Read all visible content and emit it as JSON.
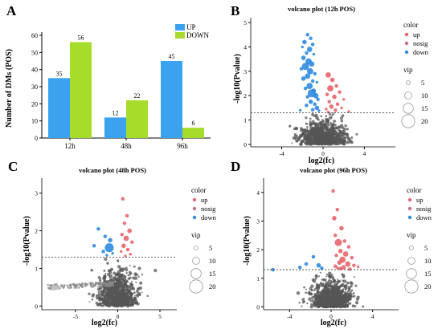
{
  "chart_data": [
    {
      "panel_label": "A",
      "type": "bar",
      "ylabel": "Number of DMs (POS)",
      "categories": [
        "12h",
        "48h",
        "96h"
      ],
      "series": [
        {
          "name": "UP",
          "values": [
            35,
            12,
            45
          ],
          "color": "#3ba2ef"
        },
        {
          "name": "DOWN",
          "values": [
            56,
            22,
            6
          ],
          "color": "#a6dc2a"
        }
      ],
      "ylim": [
        0,
        60
      ],
      "yticks": [
        0,
        10,
        20,
        30,
        40,
        50,
        60
      ],
      "legend_position": "top-right"
    },
    {
      "panel_label": "B",
      "type": "scatter",
      "title": "volcano plot (12h POS)",
      "xlabel": "log2(fc)",
      "ylabel": "-log10(Pvalue)",
      "xlim": [
        -7,
        7
      ],
      "ylim": [
        -0.1,
        5.2
      ],
      "xticks": [
        -4,
        0,
        4
      ],
      "yticks": [
        0,
        1,
        2,
        3,
        4,
        5
      ],
      "threshold_y": 1.3,
      "grid": false,
      "legend_position": "right",
      "color_legend_title": "color",
      "color_legend": [
        "up",
        "nosig",
        "down"
      ],
      "size_legend_title": "vip",
      "size_legend": [
        "5",
        "10",
        "15",
        "20"
      ],
      "points": [
        {
          "g": "down",
          "x": -1.5,
          "y": 4.5,
          "s": 3
        },
        {
          "g": "down",
          "x": -1.2,
          "y": 4.35,
          "s": 3
        },
        {
          "g": "down",
          "x": -1.8,
          "y": 4.2,
          "s": 4
        },
        {
          "g": "down",
          "x": -1.0,
          "y": 4.1,
          "s": 3
        },
        {
          "g": "down",
          "x": -2.0,
          "y": 4.0,
          "s": 2
        },
        {
          "g": "down",
          "x": -1.3,
          "y": 3.9,
          "s": 5
        },
        {
          "g": "down",
          "x": -1.6,
          "y": 3.75,
          "s": 3
        },
        {
          "g": "down",
          "x": -0.9,
          "y": 3.7,
          "s": 2
        },
        {
          "g": "down",
          "x": -1.9,
          "y": 3.55,
          "s": 4
        },
        {
          "g": "down",
          "x": -1.4,
          "y": 3.4,
          "s": 6
        },
        {
          "g": "down",
          "x": -1.1,
          "y": 3.3,
          "s": 5
        },
        {
          "g": "down",
          "x": -1.7,
          "y": 3.2,
          "s": 7
        },
        {
          "g": "down",
          "x": -2.1,
          "y": 3.1,
          "s": 3
        },
        {
          "g": "down",
          "x": -1.25,
          "y": 3.0,
          "s": 6
        },
        {
          "g": "down",
          "x": -0.8,
          "y": 2.9,
          "s": 3
        },
        {
          "g": "down",
          "x": -1.5,
          "y": 2.8,
          "s": 5
        },
        {
          "g": "down",
          "x": -1.9,
          "y": 2.7,
          "s": 4
        },
        {
          "g": "down",
          "x": -1.0,
          "y": 2.6,
          "s": 3
        },
        {
          "g": "down",
          "x": -0.6,
          "y": 2.55,
          "s": 2
        },
        {
          "g": "down",
          "x": -1.3,
          "y": 2.4,
          "s": 6
        },
        {
          "g": "down",
          "x": -1.7,
          "y": 2.3,
          "s": 3
        },
        {
          "g": "down",
          "x": -0.9,
          "y": 2.2,
          "s": 4
        },
        {
          "g": "down",
          "x": -1.1,
          "y": 2.1,
          "s": 8
        },
        {
          "g": "down",
          "x": -0.7,
          "y": 2.0,
          "s": 5
        },
        {
          "g": "down",
          "x": -1.5,
          "y": 1.95,
          "s": 3
        },
        {
          "g": "down",
          "x": -0.5,
          "y": 1.85,
          "s": 3
        },
        {
          "g": "down",
          "x": -1.2,
          "y": 1.75,
          "s": 4
        },
        {
          "g": "down",
          "x": -0.8,
          "y": 1.65,
          "s": 3
        },
        {
          "g": "down",
          "x": -1.6,
          "y": 1.6,
          "s": 3
        },
        {
          "g": "down",
          "x": -0.6,
          "y": 1.5,
          "s": 4
        },
        {
          "g": "down",
          "x": -1.0,
          "y": 1.42,
          "s": 3
        },
        {
          "g": "down",
          "x": -2.2,
          "y": 1.4,
          "s": 2
        },
        {
          "g": "down",
          "x": -0.4,
          "y": 1.38,
          "s": 2
        },
        {
          "g": "up",
          "x": 0.5,
          "y": 2.85,
          "s": 5
        },
        {
          "g": "up",
          "x": 0.9,
          "y": 2.65,
          "s": 4
        },
        {
          "g": "up",
          "x": 1.3,
          "y": 2.4,
          "s": 3
        },
        {
          "g": "up",
          "x": 0.7,
          "y": 2.3,
          "s": 6
        },
        {
          "g": "up",
          "x": 1.6,
          "y": 2.15,
          "s": 3
        },
        {
          "g": "up",
          "x": 0.4,
          "y": 2.05,
          "s": 3
        },
        {
          "g": "up",
          "x": 1.1,
          "y": 1.95,
          "s": 4
        },
        {
          "g": "up",
          "x": 2.0,
          "y": 1.85,
          "s": 2
        },
        {
          "g": "up",
          "x": 0.6,
          "y": 1.75,
          "s": 3
        },
        {
          "g": "up",
          "x": 1.4,
          "y": 1.65,
          "s": 3
        },
        {
          "g": "up",
          "x": 0.8,
          "y": 1.55,
          "s": 4
        },
        {
          "g": "up",
          "x": 1.8,
          "y": 1.5,
          "s": 2
        },
        {
          "g": "up",
          "x": 0.3,
          "y": 1.45,
          "s": 2
        },
        {
          "g": "up",
          "x": 1.2,
          "y": 1.4,
          "s": 3
        },
        {
          "g": "up",
          "x": 2.5,
          "y": 1.35,
          "s": 2
        },
        {
          "g": "up",
          "x": 0.5,
          "y": 1.33,
          "s": 2
        }
      ]
    },
    {
      "panel_label": "C",
      "type": "scatter",
      "title": "volcano plot (48h POS)",
      "xlabel": "log2(fc)",
      "ylabel": "-log10(Pvalue)",
      "xlim": [
        -9,
        7
      ],
      "ylim": [
        -0.1,
        3.4
      ],
      "xticks": [
        -5,
        0,
        5
      ],
      "yticks": [
        0,
        1,
        2,
        3
      ],
      "threshold_y": 1.3,
      "grid": false,
      "legend_position": "right",
      "color_legend_title": "color",
      "color_legend": [
        "up",
        "nosig",
        "down"
      ],
      "size_legend_title": "vip",
      "size_legend": [
        "5",
        "10",
        "15",
        "20"
      ],
      "points": [
        {
          "g": "up",
          "x": 0.6,
          "y": 2.85,
          "s": 3
        },
        {
          "g": "up",
          "x": 1.1,
          "y": 2.4,
          "s": 3
        },
        {
          "g": "up",
          "x": 0.8,
          "y": 2.2,
          "s": 3
        },
        {
          "g": "up",
          "x": 1.4,
          "y": 2.0,
          "s": 4
        },
        {
          "g": "up",
          "x": 0.5,
          "y": 1.9,
          "s": 3
        },
        {
          "g": "up",
          "x": 1.0,
          "y": 1.8,
          "s": 5
        },
        {
          "g": "up",
          "x": 1.7,
          "y": 1.7,
          "s": 3
        },
        {
          "g": "up",
          "x": 0.7,
          "y": 1.6,
          "s": 4
        },
        {
          "g": "up",
          "x": 1.2,
          "y": 1.5,
          "s": 3
        },
        {
          "g": "up",
          "x": 0.4,
          "y": 1.45,
          "s": 2
        },
        {
          "g": "up",
          "x": 1.5,
          "y": 1.38,
          "s": 2
        },
        {
          "g": "up",
          "x": 0.9,
          "y": 1.33,
          "s": 2
        },
        {
          "g": "down",
          "x": -2.3,
          "y": 2.05,
          "s": 3
        },
        {
          "g": "down",
          "x": -1.5,
          "y": 1.85,
          "s": 3
        },
        {
          "g": "down",
          "x": -0.9,
          "y": 1.75,
          "s": 4
        },
        {
          "g": "down",
          "x": -2.8,
          "y": 1.6,
          "s": 3
        },
        {
          "g": "down",
          "x": -1.0,
          "y": 1.55,
          "s": 9
        },
        {
          "g": "down",
          "x": -1.7,
          "y": 1.45,
          "s": 3
        },
        {
          "g": "down",
          "x": -0.6,
          "y": 1.4,
          "s": 2
        },
        {
          "g": "down",
          "x": -1.3,
          "y": 1.35,
          "s": 2
        }
      ]
    },
    {
      "panel_label": "D",
      "type": "scatter",
      "title": "volcano plot (96h POS)",
      "xlabel": "log2(fc)",
      "ylabel": "-log10(Pvalue)",
      "xlim": [
        -6.5,
        6.5
      ],
      "ylim": [
        -0.1,
        4.5
      ],
      "xticks": [
        -4,
        0,
        4
      ],
      "yticks": [
        0,
        1,
        2,
        3,
        4
      ],
      "threshold_y": 1.3,
      "grid": false,
      "legend_position": "right",
      "color_legend_title": "color",
      "color_legend": [
        "up",
        "nosig",
        "down"
      ],
      "size_legend_title": "vip",
      "size_legend": [
        "5",
        "10",
        "15",
        "20"
      ],
      "points": [
        {
          "g": "up",
          "x": 0.2,
          "y": 4.05,
          "s": 3
        },
        {
          "g": "up",
          "x": 0.6,
          "y": 3.4,
          "s": 3
        },
        {
          "g": "up",
          "x": 0.3,
          "y": 3.1,
          "s": 4
        },
        {
          "g": "up",
          "x": 1.0,
          "y": 2.75,
          "s": 4
        },
        {
          "g": "up",
          "x": 0.4,
          "y": 2.5,
          "s": 3
        },
        {
          "g": "up",
          "x": 1.3,
          "y": 2.3,
          "s": 3
        },
        {
          "g": "up",
          "x": 0.7,
          "y": 2.25,
          "s": 7
        },
        {
          "g": "up",
          "x": 1.7,
          "y": 2.1,
          "s": 3
        },
        {
          "g": "up",
          "x": 0.9,
          "y": 1.95,
          "s": 4
        },
        {
          "g": "up",
          "x": 1.4,
          "y": 1.85,
          "s": 5
        },
        {
          "g": "up",
          "x": 0.5,
          "y": 1.8,
          "s": 3
        },
        {
          "g": "up",
          "x": 2.0,
          "y": 1.72,
          "s": 3
        },
        {
          "g": "up",
          "x": 1.1,
          "y": 1.65,
          "s": 6
        },
        {
          "g": "up",
          "x": 0.8,
          "y": 1.55,
          "s": 4
        },
        {
          "g": "up",
          "x": 1.6,
          "y": 1.5,
          "s": 5
        },
        {
          "g": "up",
          "x": 2.2,
          "y": 1.45,
          "s": 3
        },
        {
          "g": "up",
          "x": 0.4,
          "y": 1.42,
          "s": 3
        },
        {
          "g": "up",
          "x": 1.2,
          "y": 1.38,
          "s": 4
        },
        {
          "g": "up",
          "x": 0.9,
          "y": 1.34,
          "s": 3
        },
        {
          "g": "up",
          "x": 1.8,
          "y": 1.32,
          "s": 3
        },
        {
          "g": "up",
          "x": 2.6,
          "y": 1.4,
          "s": 2
        },
        {
          "g": "up",
          "x": 0.6,
          "y": 1.36,
          "s": 2
        },
        {
          "g": "down",
          "x": -1.7,
          "y": 1.75,
          "s": 3
        },
        {
          "g": "down",
          "x": -2.4,
          "y": 1.5,
          "s": 3
        },
        {
          "g": "down",
          "x": -1.2,
          "y": 1.45,
          "s": 4
        },
        {
          "g": "down",
          "x": -3.0,
          "y": 1.38,
          "s": 3
        },
        {
          "g": "down",
          "x": -5.6,
          "y": 1.3,
          "s": 3
        },
        {
          "g": "down",
          "x": -0.9,
          "y": 1.35,
          "s": 3
        }
      ]
    }
  ]
}
